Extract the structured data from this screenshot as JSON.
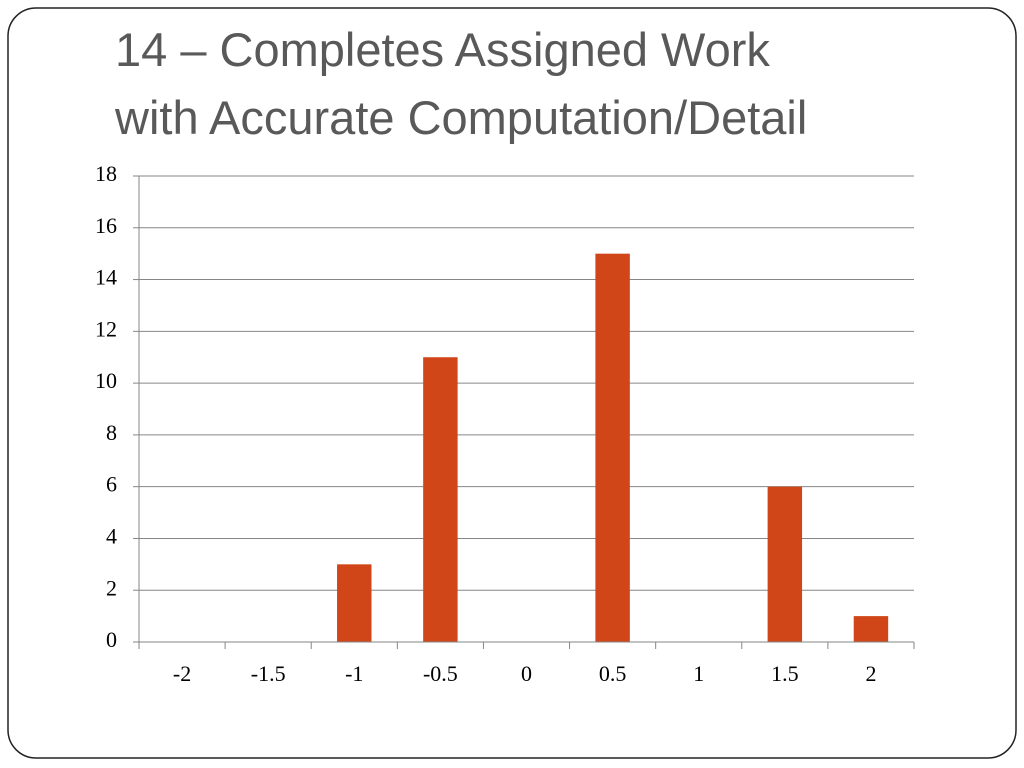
{
  "chart_data": {
    "type": "bar",
    "title": [
      "14 – Completes Assigned Work",
      "with Accurate Computation/Detail"
    ],
    "categories": [
      "-2",
      "-1.5",
      "-1",
      "-0.5",
      "0",
      "0.5",
      "1",
      "1.5",
      "2"
    ],
    "values": [
      0,
      0,
      3,
      11,
      0,
      15,
      0,
      6,
      1
    ],
    "color": "#d04619",
    "ylim": [
      0,
      18
    ],
    "yticks": [
      0,
      2,
      4,
      6,
      8,
      10,
      12,
      14,
      16,
      18
    ],
    "grid": true
  }
}
